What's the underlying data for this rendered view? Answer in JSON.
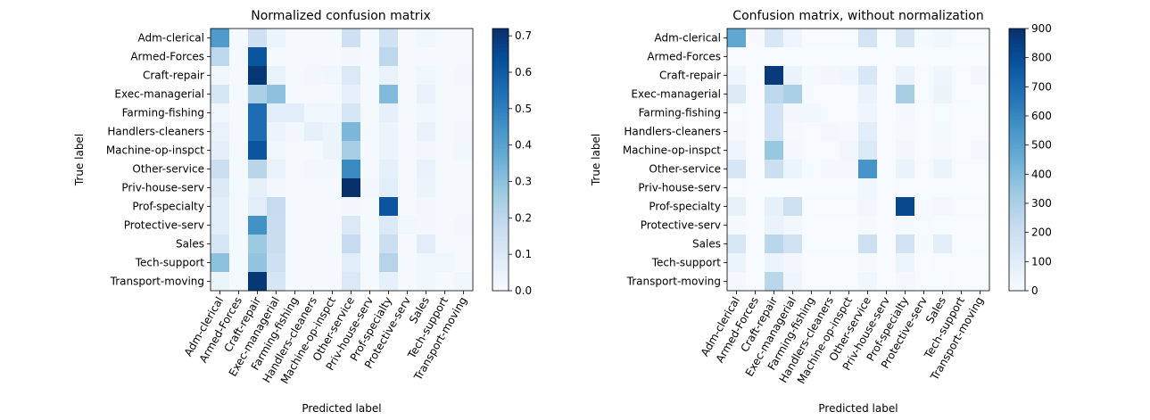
{
  "chart_data": [
    {
      "type": "heatmap",
      "title": "Normalized confusion matrix",
      "xlabel": "Predicted label",
      "ylabel": "True label",
      "categories": [
        "Adm-clerical",
        "Armed-Forces",
        "Craft-repair",
        "Exec-managerial",
        "Farming-fishing",
        "Handlers-cleaners",
        "Machine-op-inspct",
        "Other-service",
        "Priv-house-serv",
        "Prof-specialty",
        "Protective-serv",
        "Sales",
        "Tech-support",
        "Transport-moving"
      ],
      "colorbar": {
        "range": [
          0,
          0.72
        ],
        "ticks": [
          "0.0",
          "0.1",
          "0.2",
          "0.3",
          "0.4",
          "0.5",
          "0.6",
          "0.7"
        ],
        "tick_values": [
          0,
          0.1,
          0.2,
          0.3,
          0.4,
          0.5,
          0.6,
          0.7
        ]
      },
      "colormap": [
        "#f7fbff",
        "#deebf7",
        "#c6dbef",
        "#9ecae1",
        "#6baed6",
        "#4292c6",
        "#2171b5",
        "#08519c",
        "#08306b"
      ],
      "matrix": [
        [
          0.42,
          0.01,
          0.15,
          0.04,
          0.01,
          0.01,
          0.01,
          0.15,
          0.01,
          0.14,
          0.01,
          0.03,
          0.01,
          0.01
        ],
        [
          0.2,
          0.01,
          0.62,
          0.01,
          0.01,
          0.01,
          0.01,
          0.02,
          0.01,
          0.2,
          0.01,
          0.01,
          0.01,
          0.01
        ],
        [
          0.03,
          0.01,
          0.7,
          0.05,
          0.01,
          0.02,
          0.03,
          0.1,
          0.01,
          0.05,
          0.01,
          0.03,
          0.01,
          0.02
        ],
        [
          0.12,
          0.01,
          0.24,
          0.3,
          0.01,
          0.01,
          0.01,
          0.06,
          0.01,
          0.32,
          0.01,
          0.05,
          0.01,
          0.01
        ],
        [
          0.03,
          0.01,
          0.55,
          0.08,
          0.08,
          0.03,
          0.03,
          0.12,
          0.01,
          0.06,
          0.01,
          0.03,
          0.01,
          0.01
        ],
        [
          0.05,
          0.01,
          0.55,
          0.04,
          0.02,
          0.06,
          0.04,
          0.33,
          0.01,
          0.04,
          0.01,
          0.05,
          0.01,
          0.02
        ],
        [
          0.07,
          0.01,
          0.62,
          0.03,
          0.01,
          0.01,
          0.04,
          0.25,
          0.01,
          0.04,
          0.01,
          0.02,
          0.01,
          0.03
        ],
        [
          0.16,
          0.01,
          0.21,
          0.05,
          0.01,
          0.02,
          0.02,
          0.47,
          0.01,
          0.06,
          0.01,
          0.05,
          0.01,
          0.01
        ],
        [
          0.1,
          0.01,
          0.06,
          0.02,
          0.01,
          0.01,
          0.01,
          0.72,
          0.02,
          0.08,
          0.01,
          0.04,
          0.01,
          0.01
        ],
        [
          0.08,
          0.01,
          0.08,
          0.18,
          0.01,
          0.01,
          0.01,
          0.02,
          0.01,
          0.62,
          0.01,
          0.02,
          0.01,
          0.01
        ],
        [
          0.08,
          0.01,
          0.45,
          0.17,
          0.01,
          0.01,
          0.01,
          0.1,
          0.01,
          0.1,
          0.03,
          0.02,
          0.01,
          0.02
        ],
        [
          0.12,
          0.01,
          0.27,
          0.17,
          0.01,
          0.01,
          0.01,
          0.18,
          0.01,
          0.16,
          0.01,
          0.08,
          0.01,
          0.01
        ],
        [
          0.3,
          0.01,
          0.29,
          0.15,
          0.01,
          0.01,
          0.01,
          0.08,
          0.01,
          0.22,
          0.01,
          0.03,
          0.03,
          0.01
        ],
        [
          0.04,
          0.01,
          0.7,
          0.12,
          0.01,
          0.01,
          0.01,
          0.1,
          0.01,
          0.06,
          0.01,
          0.03,
          0.01,
          0.03
        ]
      ]
    },
    {
      "type": "heatmap",
      "title": "Confusion matrix, without normalization",
      "xlabel": "Predicted label",
      "ylabel": "True label",
      "categories": [
        "Adm-clerical",
        "Armed-Forces",
        "Craft-repair",
        "Exec-managerial",
        "Farming-fishing",
        "Handlers-cleaners",
        "Machine-op-inspct",
        "Other-service",
        "Priv-house-serv",
        "Prof-specialty",
        "Protective-serv",
        "Sales",
        "Tech-support",
        "Transport-moving"
      ],
      "colorbar": {
        "range": [
          0,
          900
        ],
        "ticks": [
          "0",
          "100",
          "200",
          "300",
          "400",
          "500",
          "600",
          "700",
          "800",
          "900"
        ],
        "tick_values": [
          0,
          100,
          200,
          300,
          400,
          500,
          600,
          700,
          800,
          900
        ]
      },
      "colormap": [
        "#f7fbff",
        "#deebf7",
        "#c6dbef",
        "#9ecae1",
        "#6baed6",
        "#4292c6",
        "#2171b5",
        "#08519c",
        "#08306b"
      ],
      "matrix": [
        [
          480,
          5,
          140,
          40,
          10,
          10,
          10,
          160,
          3,
          150,
          10,
          30,
          8,
          10
        ],
        [
          0,
          0,
          2,
          0,
          0,
          0,
          0,
          0,
          0,
          1,
          0,
          0,
          0,
          0
        ],
        [
          40,
          2,
          870,
          60,
          15,
          25,
          40,
          140,
          2,
          60,
          10,
          40,
          10,
          25
        ],
        [
          120,
          2,
          250,
          300,
          10,
          10,
          10,
          60,
          2,
          310,
          10,
          50,
          10,
          10
        ],
        [
          10,
          0,
          170,
          25,
          30,
          10,
          10,
          40,
          0,
          20,
          0,
          10,
          0,
          5
        ],
        [
          15,
          0,
          170,
          15,
          5,
          20,
          15,
          100,
          0,
          15,
          0,
          15,
          0,
          5
        ],
        [
          40,
          1,
          350,
          20,
          5,
          5,
          25,
          130,
          0,
          25,
          3,
          15,
          3,
          20
        ],
        [
          150,
          2,
          200,
          50,
          10,
          20,
          20,
          550,
          2,
          60,
          10,
          50,
          8,
          10
        ],
        [
          4,
          0,
          3,
          1,
          0,
          0,
          0,
          30,
          1,
          4,
          0,
          2,
          0,
          0
        ],
        [
          70,
          2,
          80,
          190,
          10,
          10,
          10,
          25,
          2,
          820,
          10,
          20,
          10,
          5
        ],
        [
          15,
          0,
          60,
          25,
          2,
          2,
          2,
          15,
          0,
          15,
          5,
          3,
          1,
          3
        ],
        [
          140,
          2,
          260,
          180,
          10,
          10,
          10,
          190,
          2,
          170,
          10,
          90,
          10,
          10
        ],
        [
          50,
          1,
          50,
          25,
          2,
          2,
          2,
          15,
          0,
          45,
          2,
          5,
          5,
          2
        ],
        [
          20,
          1,
          260,
          40,
          5,
          5,
          5,
          35,
          0,
          20,
          5,
          10,
          3,
          10
        ]
      ]
    }
  ]
}
